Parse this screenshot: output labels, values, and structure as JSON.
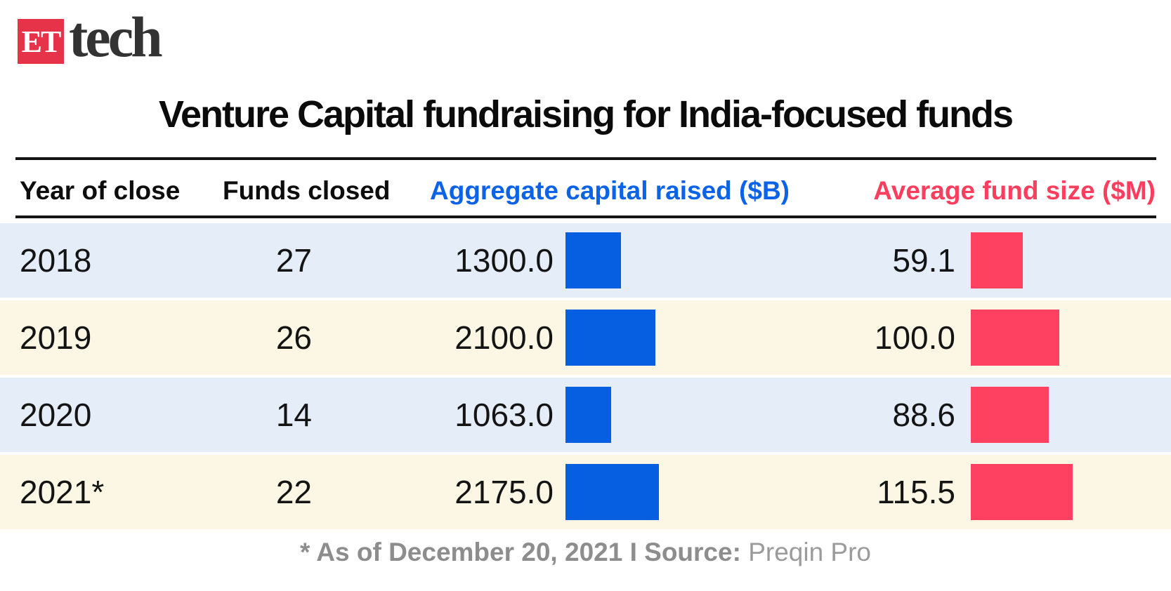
{
  "brand": {
    "logo_box_text": "ET",
    "logo_name": "tech"
  },
  "title": "Venture Capital fundraising for India-focused funds",
  "table": {
    "headers": {
      "year": "Year of close",
      "funds": "Funds closed",
      "aggregate": "Aggregate capital raised ($B)",
      "average": "Average fund size ($M)"
    },
    "rows": [
      {
        "year": "2018",
        "funds": "27",
        "agg": "1300.0",
        "avg": "59.1"
      },
      {
        "year": "2019",
        "funds": "26",
        "agg": "2100.0",
        "avg": "100.0"
      },
      {
        "year": "2020",
        "funds": "14",
        "agg": "1063.0",
        "avg": "88.6"
      },
      {
        "year": "2021*",
        "funds": "22",
        "agg": "2175.0",
        "avg": "115.5"
      }
    ]
  },
  "chart_data": {
    "type": "bar",
    "title": "Venture Capital fundraising for India-focused funds",
    "categories": [
      "2018",
      "2019",
      "2020",
      "2021*"
    ],
    "series": [
      {
        "name": "Funds closed",
        "values": [
          27,
          26,
          14,
          22
        ]
      },
      {
        "name": "Aggregate capital raised ($B)",
        "values": [
          1300.0,
          2100.0,
          1063.0,
          2175.0
        ],
        "color": "#055fe0"
      },
      {
        "name": "Average fund size ($M)",
        "values": [
          59.1,
          100.0,
          88.6,
          115.5
        ],
        "color": "#fe4161"
      }
    ],
    "legend_position": "column-headers",
    "grid": false,
    "orientation": "horizontal-inline-table-bars",
    "footnote": "* As of December 20, 2021",
    "source": "Preqin Pro"
  },
  "footer": {
    "note_bold": "* As of December 20, 2021  I  Source:",
    "source": "Preqin Pro"
  },
  "colors": {
    "logo_red": "#e73349",
    "aggregate_blue": "#0c63e8",
    "average_pink": "#fb3e5e",
    "bar_blue": "#055fe0",
    "bar_pink": "#fe4161",
    "row_blue": "#e4edf8",
    "row_cream": "#fcf7e4",
    "rule_black": "#141414",
    "footer_gray": "#8d8d8d"
  }
}
